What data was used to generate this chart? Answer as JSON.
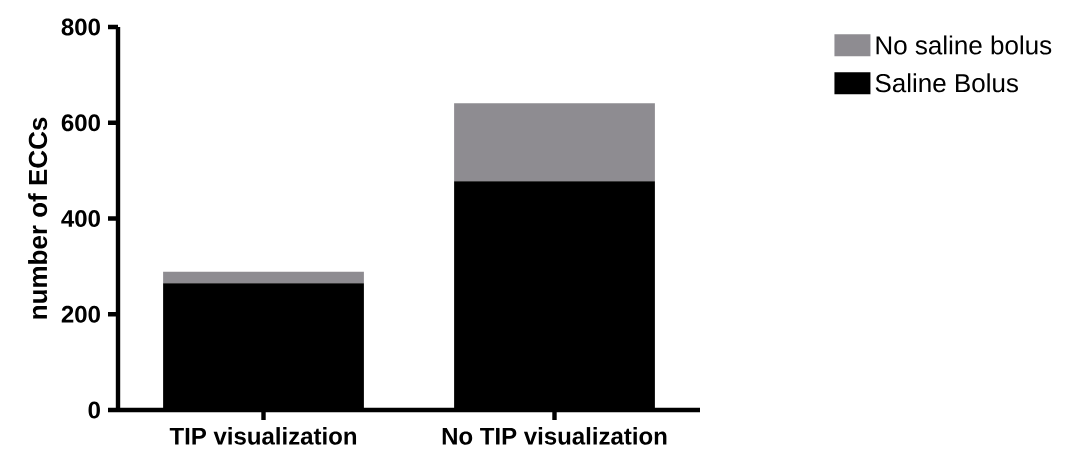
{
  "chart_data": {
    "type": "bar",
    "stacked": true,
    "ylabel": "number of ECCs",
    "categories": [
      "TIP visualization",
      "No TIP visualization"
    ],
    "series": [
      {
        "name": "Saline Bolus",
        "color": "#000000",
        "values": [
          265,
          478
        ]
      },
      {
        "name": "No saline bolus",
        "color": "#8e8c91",
        "values": [
          24,
          163
        ]
      }
    ],
    "ylim": [
      0,
      800
    ],
    "yticks": [
      0,
      200,
      400,
      600,
      800
    ],
    "grid": false,
    "legend": "top right"
  }
}
